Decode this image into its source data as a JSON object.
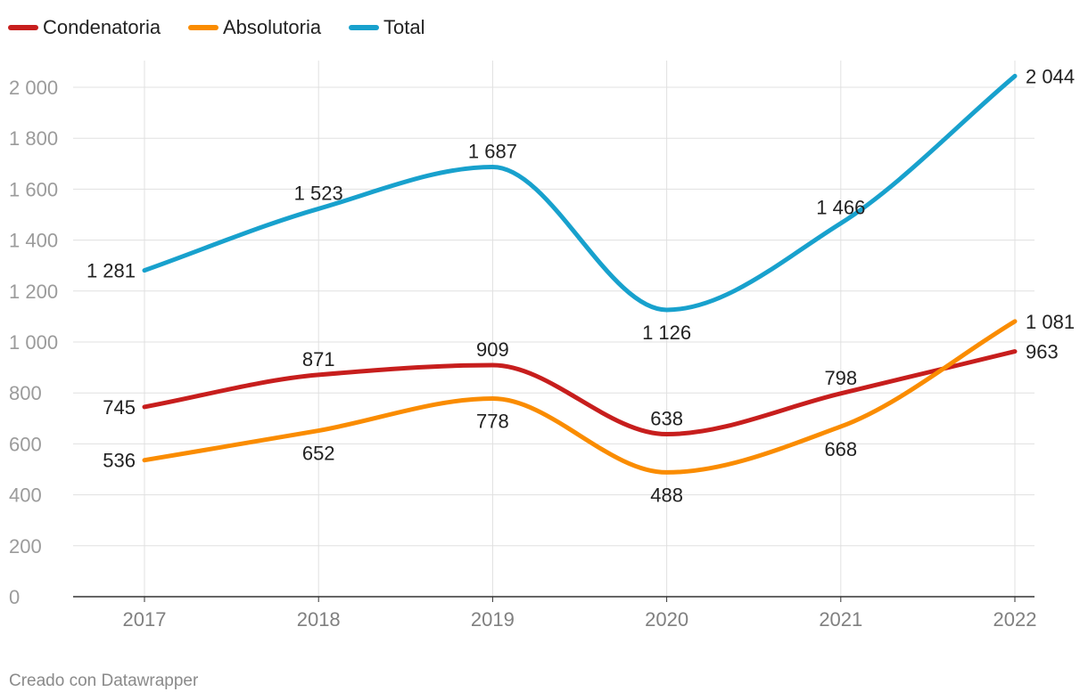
{
  "chart_data": {
    "type": "line",
    "title": "",
    "xlabel": "",
    "ylabel": "",
    "categories": [
      "2017",
      "2018",
      "2019",
      "2020",
      "2021",
      "2022"
    ],
    "ylim": [
      0,
      2000
    ],
    "yticks": [
      0,
      200,
      400,
      600,
      800,
      1000,
      1200,
      1400,
      1600,
      1800,
      2000
    ],
    "ytick_labels": [
      "0",
      "200",
      "400",
      "600",
      "800",
      "1 000",
      "1 200",
      "1 400",
      "1 600",
      "1 800",
      "2 000"
    ],
    "grid": true,
    "legend_position": "top-left",
    "series": [
      {
        "key": "condenatoria",
        "name": "Condenatoria",
        "color": "#c71e1d",
        "values": [
          745,
          871,
          909,
          638,
          798,
          963
        ],
        "labels": [
          "745",
          "871",
          "909",
          "638",
          "798",
          "963"
        ]
      },
      {
        "key": "absolutoria",
        "name": "Absolutoria",
        "color": "#fa8c00",
        "values": [
          536,
          652,
          778,
          488,
          668,
          1081
        ],
        "labels": [
          "536",
          "652",
          "778",
          "488",
          "668",
          "1 081"
        ]
      },
      {
        "key": "total",
        "name": "Total",
        "color": "#18a1cd",
        "values": [
          1281,
          1523,
          1687,
          1126,
          1466,
          2044
        ],
        "labels": [
          "1 281",
          "1 523",
          "1 687",
          "1 126",
          "1 466",
          "2 044"
        ]
      }
    ]
  },
  "footer": {
    "credit": "Creado con Datawrapper"
  }
}
